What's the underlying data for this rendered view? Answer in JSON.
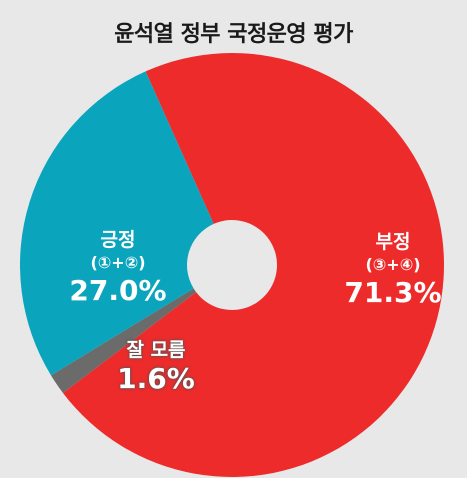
{
  "chart_data": {
    "type": "pie",
    "title": "윤석열 정부 국정운영 평가",
    "slices": [
      {
        "label": "부정",
        "sublabel": "(③+④)",
        "value": 71.3,
        "display": "71.3%",
        "color": "#ee2b2b"
      },
      {
        "label": "잘 모름",
        "sublabel": "",
        "value": 1.6,
        "display": "1.6%",
        "color": "#6b6b6b"
      },
      {
        "label": "긍정",
        "sublabel": "(①+②)",
        "value": 27.0,
        "display": "27.0%",
        "color": "#0aa5bd"
      }
    ],
    "donut": true,
    "legend": "none"
  }
}
